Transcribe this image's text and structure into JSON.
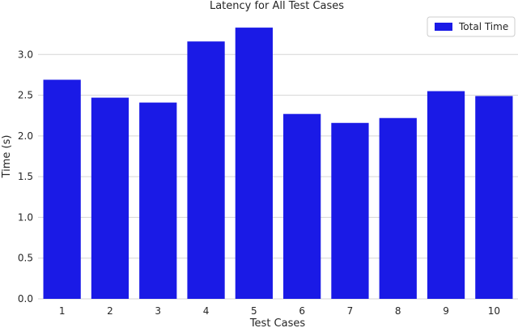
{
  "chart_data": {
    "type": "bar",
    "title": "Latency for All Test Cases",
    "xlabel": "Test Cases",
    "ylabel": "Time (s)",
    "categories": [
      "1",
      "2",
      "3",
      "4",
      "5",
      "6",
      "7",
      "8",
      "9",
      "10"
    ],
    "series": [
      {
        "name": "Total Time",
        "values": [
          2.69,
          2.47,
          2.41,
          3.16,
          3.33,
          2.27,
          2.16,
          2.22,
          2.55,
          2.49
        ],
        "color": "#1a1ae6"
      }
    ],
    "ylim": [
      0,
      3.5
    ],
    "yticks": [
      0.0,
      0.5,
      1.0,
      1.5,
      2.0,
      2.5,
      3.0
    ],
    "ytick_labels": [
      "0.0",
      "0.5",
      "1.0",
      "1.5",
      "2.0",
      "2.5",
      "3.0"
    ],
    "grid": "horizontal",
    "legend_position": "top-right"
  }
}
